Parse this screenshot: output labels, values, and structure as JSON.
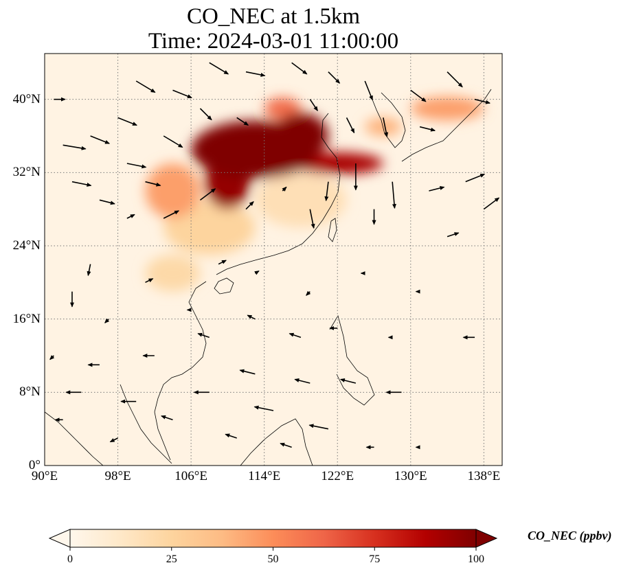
{
  "title_line1": "CO_NEC at 1.5km",
  "title_line2": "Time: 2024-03-01 11:00:00",
  "map": {
    "lon_range": [
      90,
      140
    ],
    "lat_range": [
      0,
      45
    ],
    "lat_ticks": [
      {
        "value": 40,
        "label": "40°N"
      },
      {
        "value": 32,
        "label": "32°N"
      },
      {
        "value": 24,
        "label": "24°N"
      },
      {
        "value": 16,
        "label": "16°N"
      },
      {
        "value": 8,
        "label": "8°N"
      },
      {
        "value": 0,
        "label": "0°"
      }
    ],
    "lon_ticks": [
      {
        "value": 90,
        "label": "90°E"
      },
      {
        "value": 98,
        "label": "98°E"
      },
      {
        "value": 106,
        "label": "106°E"
      },
      {
        "value": 114,
        "label": "114°E"
      },
      {
        "value": 122,
        "label": "122°E"
      },
      {
        "value": 130,
        "label": "130°E"
      },
      {
        "value": 138,
        "label": "138°E"
      }
    ],
    "gridlines": true,
    "colormap": "OrRd",
    "colors": {
      "low": "#fff7ec",
      "mid": "#fdbb84",
      "high": "#7f0000"
    }
  },
  "colorbar": {
    "label": "CO_NEC (ppbv)",
    "min": 0,
    "max": 100,
    "extend": "both",
    "ticks": [
      {
        "value": 0,
        "label": "0"
      },
      {
        "value": 25,
        "label": "25"
      },
      {
        "value": 50,
        "label": "50"
      },
      {
        "value": 75,
        "label": "75"
      },
      {
        "value": 100,
        "label": "100"
      }
    ]
  },
  "plumes": [
    {
      "lon": 113,
      "lat": 34.5,
      "rlon": 7,
      "rlat": 3.2,
      "value": 100
    },
    {
      "lon": 110,
      "lat": 31,
      "rlon": 2.5,
      "rlat": 3,
      "value": 95
    },
    {
      "lon": 118,
      "lat": 36,
      "rlon": 3,
      "rlat": 2.5,
      "value": 100
    },
    {
      "lon": 122,
      "lat": 33,
      "rlon": 5,
      "rlat": 1.2,
      "value": 90
    },
    {
      "lon": 116,
      "lat": 39,
      "rlon": 2,
      "rlat": 1.2,
      "value": 60
    },
    {
      "lon": 104,
      "lat": 30,
      "rlon": 3,
      "rlat": 3,
      "value": 45
    },
    {
      "lon": 108,
      "lat": 26,
      "rlon": 5,
      "rlat": 3,
      "value": 25
    },
    {
      "lon": 134,
      "lat": 39,
      "rlon": 4,
      "rlat": 1.3,
      "value": 45
    },
    {
      "lon": 127,
      "lat": 37,
      "rlon": 2,
      "rlat": 1,
      "value": 40
    },
    {
      "lon": 104,
      "lat": 21,
      "rlon": 3,
      "rlat": 2,
      "value": 22
    },
    {
      "lon": 118,
      "lat": 29,
      "rlon": 5,
      "rlat": 3,
      "value": 18
    }
  ],
  "wind_vectors": [
    {
      "lon": 91,
      "lat": 40,
      "u": 1.5,
      "v": 0
    },
    {
      "lon": 92,
      "lat": 35,
      "u": 3,
      "v": -0.5
    },
    {
      "lon": 95,
      "lat": 36,
      "u": 2.5,
      "v": -1
    },
    {
      "lon": 98,
      "lat": 38,
      "u": 2.5,
      "v": -1
    },
    {
      "lon": 100,
      "lat": 42,
      "u": 2.5,
      "v": -1.5
    },
    {
      "lon": 104,
      "lat": 41,
      "u": 2.5,
      "v": -1
    },
    {
      "lon": 108,
      "lat": 44,
      "u": 2.5,
      "v": -1.5
    },
    {
      "lon": 112,
      "lat": 43,
      "u": 2.5,
      "v": -0.5
    },
    {
      "lon": 117,
      "lat": 44,
      "u": 2,
      "v": -1.5
    },
    {
      "lon": 121,
      "lat": 43,
      "u": 1.5,
      "v": -1.5
    },
    {
      "lon": 125,
      "lat": 42,
      "u": 1,
      "v": -2.5
    },
    {
      "lon": 130,
      "lat": 41,
      "u": 2,
      "v": -1.5
    },
    {
      "lon": 134,
      "lat": 43,
      "u": 2,
      "v": -2
    },
    {
      "lon": 137,
      "lat": 40,
      "u": 2,
      "v": -0.5
    },
    {
      "lon": 99,
      "lat": 33,
      "u": 2.5,
      "v": -0.5
    },
    {
      "lon": 93,
      "lat": 31,
      "u": 2.5,
      "v": -0.5
    },
    {
      "lon": 96,
      "lat": 29,
      "u": 2,
      "v": -0.5
    },
    {
      "lon": 101,
      "lat": 31,
      "u": 2,
      "v": -0.5
    },
    {
      "lon": 103,
      "lat": 36,
      "u": 2.5,
      "v": -1.5
    },
    {
      "lon": 107,
      "lat": 39,
      "u": 1.5,
      "v": -1.5
    },
    {
      "lon": 111,
      "lat": 38,
      "u": 1.5,
      "v": -1
    },
    {
      "lon": 119,
      "lat": 40,
      "u": 1,
      "v": -1.5
    },
    {
      "lon": 123,
      "lat": 38,
      "u": 1,
      "v": -2
    },
    {
      "lon": 127,
      "lat": 38,
      "u": 0.5,
      "v": -2.5
    },
    {
      "lon": 131,
      "lat": 37,
      "u": 2,
      "v": -0.5
    },
    {
      "lon": 124,
      "lat": 33,
      "u": 0,
      "v": -3.5
    },
    {
      "lon": 128,
      "lat": 31,
      "u": 0.3,
      "v": -3.5
    },
    {
      "lon": 121,
      "lat": 31,
      "u": -0.3,
      "v": -2.5
    },
    {
      "lon": 119,
      "lat": 28,
      "u": 0.5,
      "v": -2.5
    },
    {
      "lon": 126,
      "lat": 28,
      "u": 0,
      "v": -2
    },
    {
      "lon": 132,
      "lat": 30,
      "u": 2,
      "v": 0.5
    },
    {
      "lon": 136,
      "lat": 31,
      "u": 2.5,
      "v": 1
    },
    {
      "lon": 138,
      "lat": 28,
      "u": 2,
      "v": 1.5
    },
    {
      "lon": 134,
      "lat": 25,
      "u": 1.5,
      "v": 0.5
    },
    {
      "lon": 103,
      "lat": 27,
      "u": 2,
      "v": 1
    },
    {
      "lon": 99,
      "lat": 27,
      "u": 1,
      "v": 0.5
    },
    {
      "lon": 107,
      "lat": 29,
      "u": 2,
      "v": 1.5
    },
    {
      "lon": 112,
      "lat": 28,
      "u": 1,
      "v": 1
    },
    {
      "lon": 116,
      "lat": 30,
      "u": 0.5,
      "v": 0.5
    },
    {
      "lon": 95,
      "lat": 22,
      "u": -0.3,
      "v": -1.5
    },
    {
      "lon": 93,
      "lat": 19,
      "u": 0,
      "v": -2
    },
    {
      "lon": 101,
      "lat": 20,
      "u": 1,
      "v": 0.5
    },
    {
      "lon": 109,
      "lat": 22,
      "u": 1,
      "v": 0.5
    },
    {
      "lon": 113,
      "lat": 21,
      "u": 0.5,
      "v": 0.3
    },
    {
      "lon": 119,
      "lat": 19,
      "u": -0.5,
      "v": -0.5
    },
    {
      "lon": 125,
      "lat": 21,
      "u": -0.5,
      "v": 0
    },
    {
      "lon": 131,
      "lat": 19,
      "u": -0.5,
      "v": 0
    },
    {
      "lon": 137,
      "lat": 14,
      "u": -1.5,
      "v": 0
    },
    {
      "lon": 118,
      "lat": 14,
      "u": -1.5,
      "v": 0.5
    },
    {
      "lon": 122,
      "lat": 15,
      "u": -1,
      "v": 0
    },
    {
      "lon": 108,
      "lat": 14,
      "u": -1.5,
      "v": 0.5
    },
    {
      "lon": 102,
      "lat": 12,
      "u": -1.5,
      "v": 0
    },
    {
      "lon": 96,
      "lat": 11,
      "u": -1.5,
      "v": 0
    },
    {
      "lon": 91,
      "lat": 12,
      "u": -0.5,
      "v": -0.5
    },
    {
      "lon": 113,
      "lat": 10,
      "u": -2,
      "v": 0.5
    },
    {
      "lon": 119,
      "lat": 9,
      "u": -2,
      "v": 0.5
    },
    {
      "lon": 124,
      "lat": 9,
      "u": -2,
      "v": 0.5
    },
    {
      "lon": 129,
      "lat": 8,
      "u": -2,
      "v": 0
    },
    {
      "lon": 108,
      "lat": 8,
      "u": -2,
      "v": 0
    },
    {
      "lon": 100,
      "lat": 7,
      "u": -2,
      "v": 0
    },
    {
      "lon": 94,
      "lat": 8,
      "u": -2,
      "v": 0
    },
    {
      "lon": 92,
      "lat": 5,
      "u": -1,
      "v": 0
    },
    {
      "lon": 104,
      "lat": 5,
      "u": -1.5,
      "v": 0.5
    },
    {
      "lon": 115,
      "lat": 6,
      "u": -2.5,
      "v": 0.5
    },
    {
      "lon": 121,
      "lat": 4,
      "u": -2.5,
      "v": 0.5
    },
    {
      "lon": 126,
      "lat": 2,
      "u": -1,
      "v": 0
    },
    {
      "lon": 111,
      "lat": 3,
      "u": -1.5,
      "v": 0.5
    },
    {
      "lon": 98,
      "lat": 3,
      "u": -1,
      "v": -0.5
    },
    {
      "lon": 117,
      "lat": 2,
      "u": -1.5,
      "v": 0.5
    },
    {
      "lon": 131,
      "lat": 2,
      "u": -0.5,
      "v": 0
    },
    {
      "lon": 106,
      "lat": 17,
      "u": -0.5,
      "v": 0
    },
    {
      "lon": 97,
      "lat": 16,
      "u": -0.5,
      "v": -0.5
    },
    {
      "lon": 113,
      "lat": 16,
      "u": -1,
      "v": 0.5
    },
    {
      "lon": 128,
      "lat": 14,
      "u": -0.5,
      "v": 0
    }
  ]
}
